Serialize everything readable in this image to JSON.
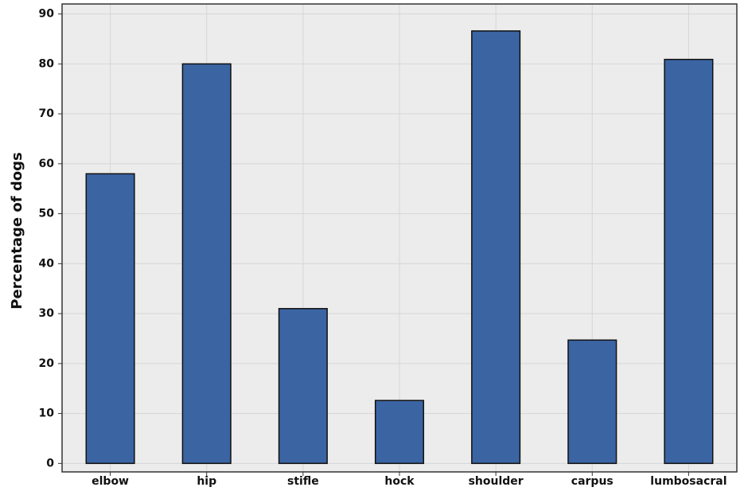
{
  "chart_data": {
    "type": "bar",
    "y_label": "Percentage of dogs",
    "categories": [
      "elbow",
      "hip",
      "stifle",
      "hock",
      "shoulder",
      "carpus",
      "lumbosacral"
    ],
    "values": [
      58,
      80,
      31,
      12.6,
      86.6,
      24.7,
      80.9
    ],
    "color": "#3b64a3",
    "ylim": [
      -1.7,
      92
    ],
    "yticks": [
      0,
      10,
      20,
      30,
      40,
      50,
      60,
      70,
      80,
      90
    ],
    "grid": true
  }
}
